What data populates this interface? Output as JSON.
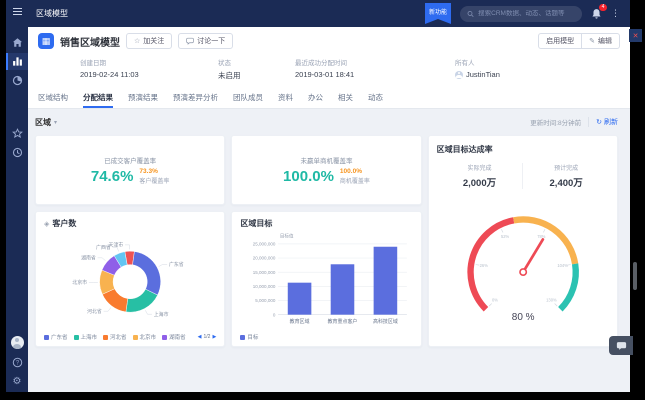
{
  "colors": {
    "navy": "#1b2b55",
    "accent": "#2e6bf0",
    "teal": "#1fb9a5",
    "orange": "#f7941e",
    "bar": "#5b6ede"
  },
  "icons": {
    "follow": "☆",
    "edit": "✎",
    "refresh": "↻",
    "caret": "▾",
    "chart_title": "◈",
    "pager_prev": "◀",
    "pager_next": "▶",
    "app": "▦",
    "kebab": "⋮",
    "close": "✕"
  },
  "topbar": {
    "title": "区域模型",
    "badge": "新功能",
    "search_placeholder": "搜索CRM数据、动态、话题等",
    "notifications": "4"
  },
  "header": {
    "title": "销售区域模型",
    "follow_label": "加关注",
    "discuss_label": "讨论一下",
    "enable_label": "启用模型",
    "edit_label": "编辑",
    "fields": [
      {
        "label": "创建日期",
        "value": "2019-02-24 11:03"
      },
      {
        "label": "状态",
        "value": "未启用"
      },
      {
        "label": "最近成功分配时间",
        "value": "2019-03-01 18:41"
      },
      {
        "label": "所有人",
        "value": "JustinTian"
      }
    ]
  },
  "tabs": [
    "区域结构",
    "分配结果",
    "预演结果",
    "预演差异分析",
    "团队成员",
    "资料",
    "办公",
    "相关",
    "动态"
  ],
  "active_tab": 1,
  "toolbar": {
    "region_filter": "区域",
    "updated": "更新时间:8分钟前",
    "refresh_label": "刷新"
  },
  "kpis": [
    {
      "title": "已成交客户覆盖率",
      "value": "74.6%",
      "sub_value": "73.3%",
      "sub_label": "客户覆盖率"
    },
    {
      "title": "未赢单商机覆盖率",
      "value": "100.0%",
      "sub_value": "100.0%",
      "sub_label": "商机覆盖率"
    }
  ],
  "chart_data": [
    {
      "type": "pie",
      "title": "客户数",
      "series": [
        {
          "name": "天津市",
          "value": 5,
          "color": "#ee5253"
        },
        {
          "name": "广东省",
          "value": 30,
          "color": "#5b6ede"
        },
        {
          "name": "上海市",
          "value": 20,
          "color": "#27bfa4"
        },
        {
          "name": "河北省",
          "value": 16,
          "color": "#f97b2f"
        },
        {
          "name": "北京市",
          "value": 13,
          "color": "#f8b24f"
        },
        {
          "name": "湖南省",
          "value": 10,
          "color": "#8f5fe8"
        },
        {
          "name": "广西省",
          "value": 6,
          "color": "#63c5f2"
        }
      ],
      "legend": [
        "广东省",
        "上海市",
        "河北省",
        "北京市",
        "湖南省"
      ],
      "legend_page": "1/2",
      "start_angle": -10
    },
    {
      "type": "bar",
      "title": "区域目标",
      "axis_name": "目标值",
      "series_name": "目标",
      "categories": [
        "教育区域",
        "教育重点客户",
        "高科技区域"
      ],
      "values": [
        11300000,
        17800000,
        24000000
      ],
      "ymax": 25000000,
      "yticks": [
        "25,000,000",
        "20,000,000",
        "15,000,000",
        "10,000,000",
        "5,000,000",
        "0"
      ],
      "bar_color": "#5b6ede"
    },
    {
      "type": "gauge",
      "title": "区域目标达成率",
      "value": 80,
      "min": 0,
      "max": 130,
      "display": "80 %",
      "stats": [
        {
          "label": "实际完成",
          "value": "2,000万"
        },
        {
          "label": "预计完成",
          "value": "2,400万"
        }
      ],
      "ticks": [
        "0%",
        "26%",
        "52%",
        "78%",
        "104%",
        "130%"
      ],
      "zones": [
        {
          "to": 60,
          "color": "#ee4a55"
        },
        {
          "to": 104,
          "color": "#f8b24f"
        },
        {
          "to": 130,
          "color": "#2bc2b2"
        }
      ],
      "needle_color": "#ee4a55"
    }
  ]
}
